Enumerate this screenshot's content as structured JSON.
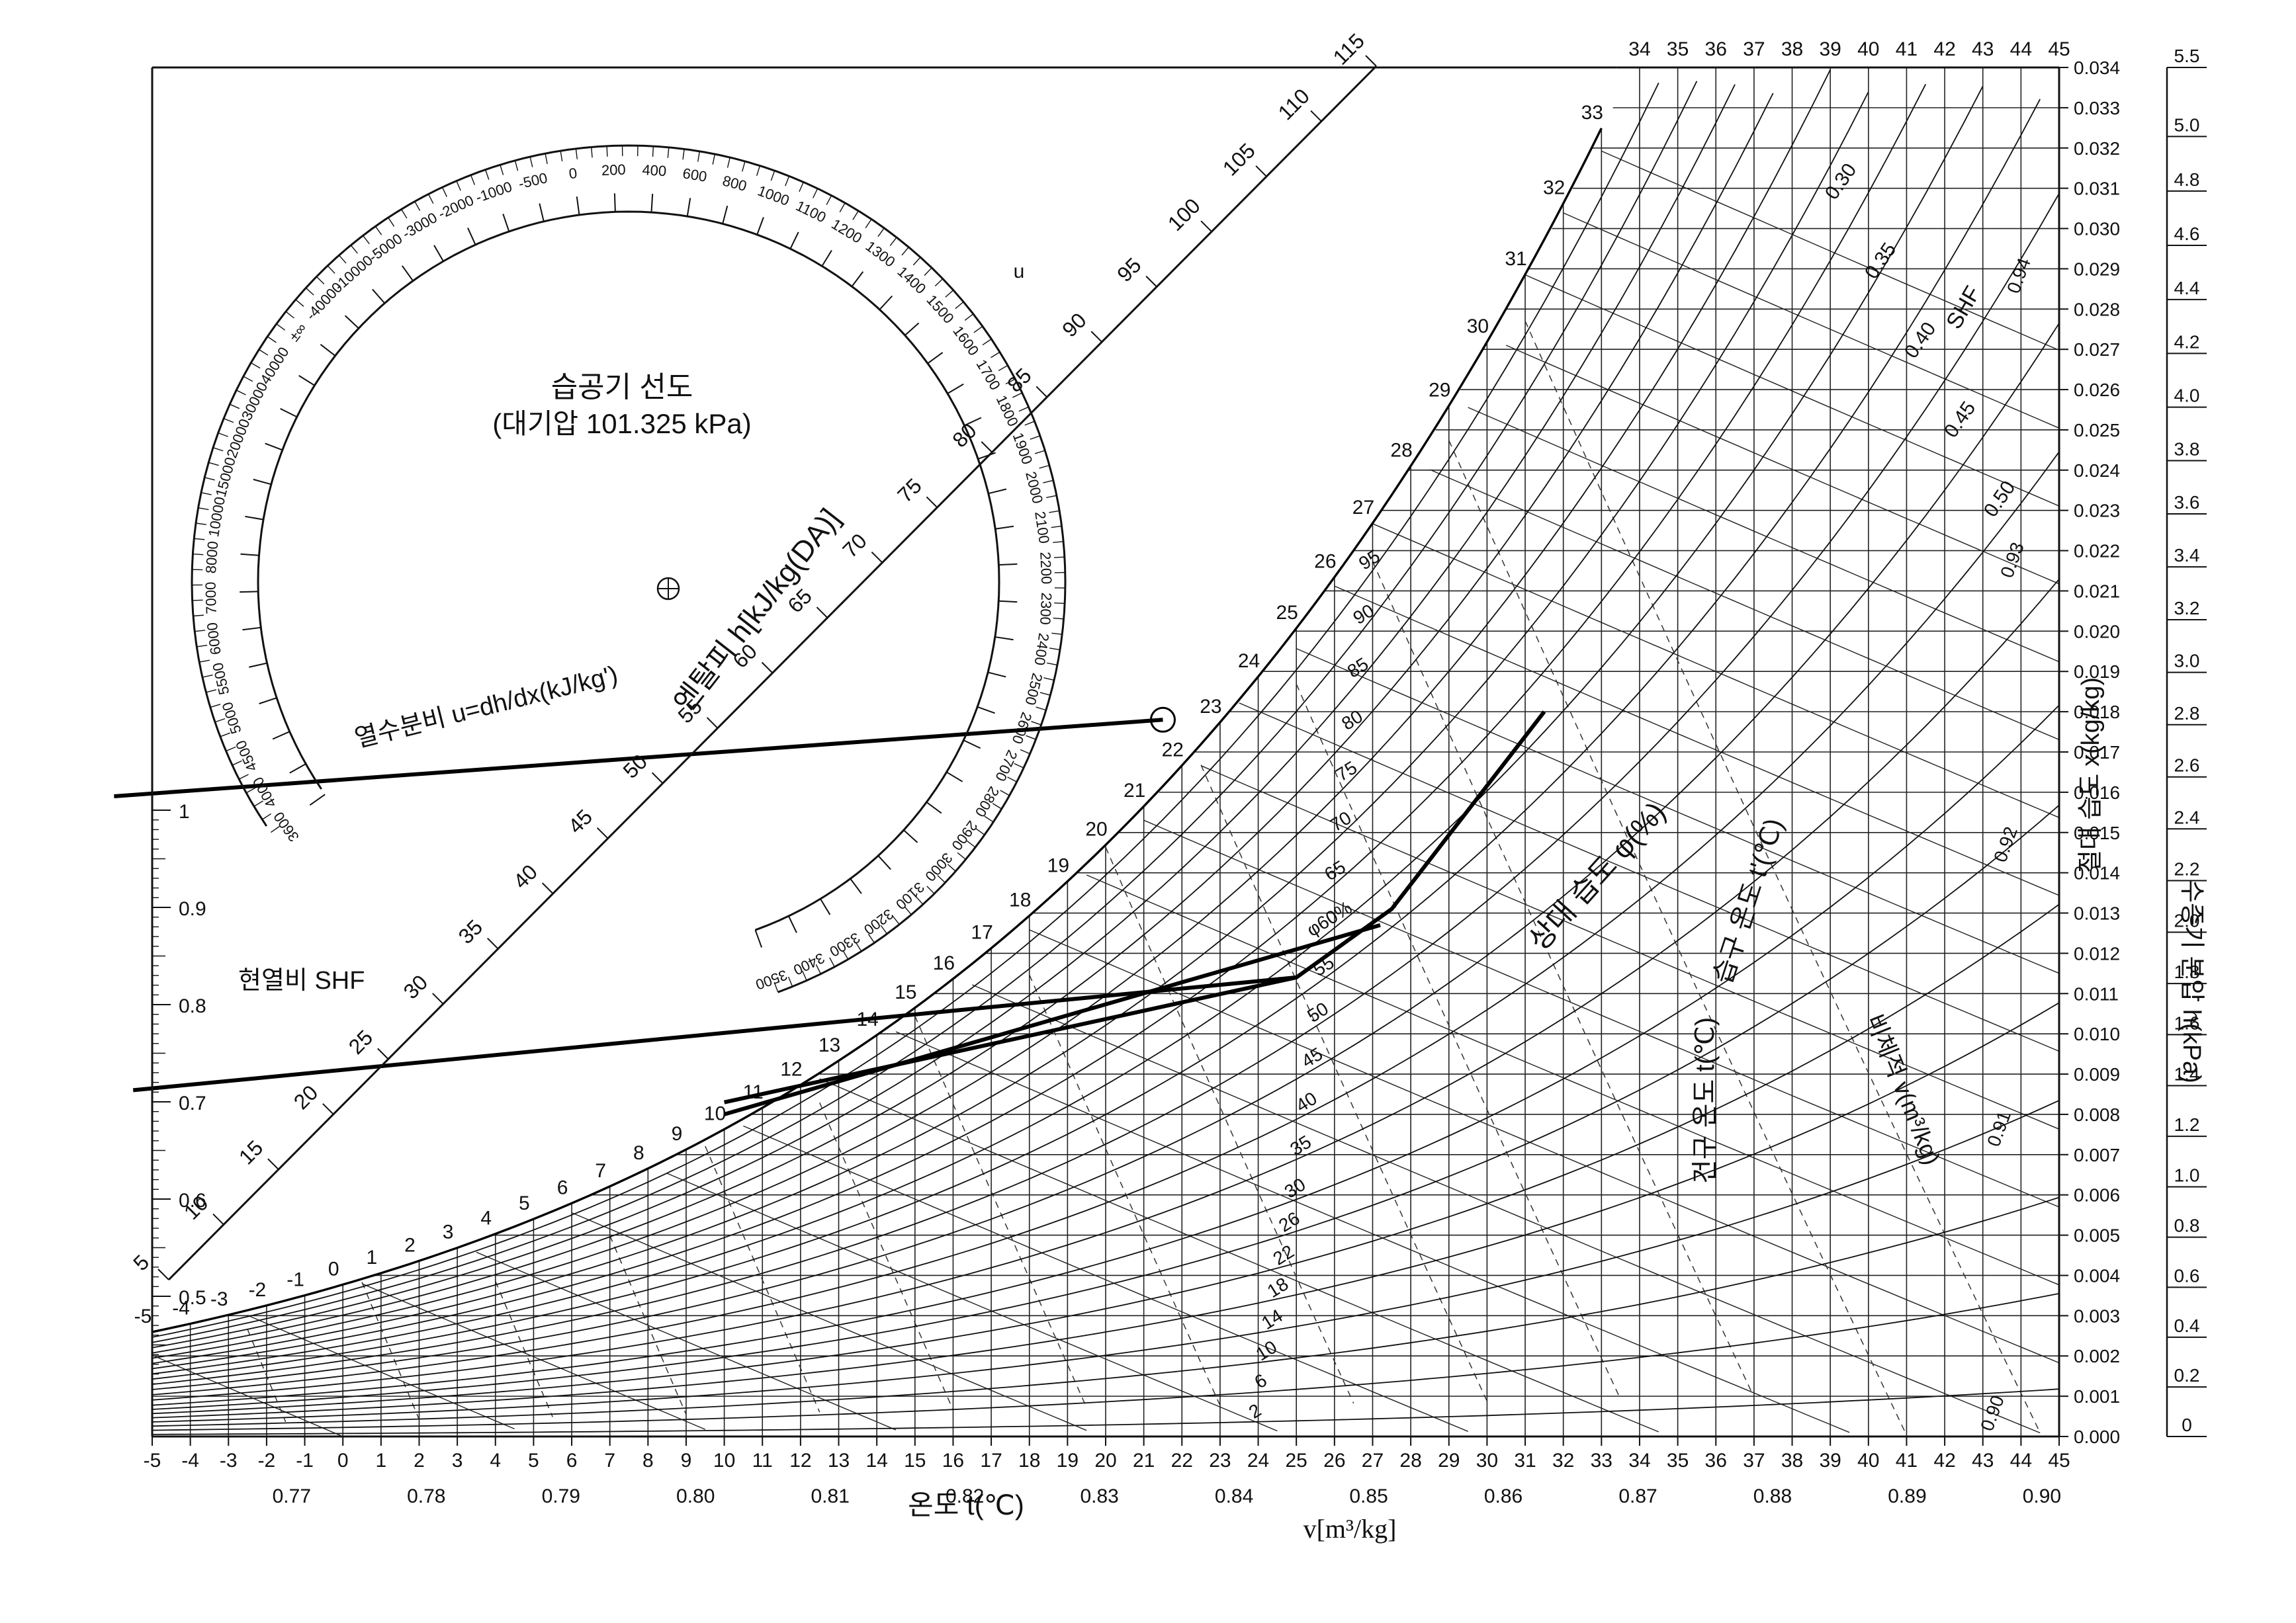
{
  "chart_data": {
    "type": "psychrometric",
    "title": "습공기 선도",
    "subtitle": "(대기압 101.325 kPa)",
    "x_axis": {
      "label": "온도 t(℃)",
      "ticks": [
        -5,
        -4,
        -3,
        -2,
        -1,
        0,
        1,
        2,
        3,
        4,
        5,
        6,
        7,
        8,
        9,
        10,
        11,
        12,
        13,
        14,
        15,
        16,
        17,
        18,
        19,
        20,
        21,
        22,
        23,
        24,
        25,
        26,
        27,
        28,
        29,
        30,
        31,
        32,
        33,
        34,
        35,
        36,
        37,
        38,
        39,
        40,
        41,
        42,
        43,
        44,
        45
      ],
      "range": [
        -5,
        45
      ]
    },
    "top_axis": {
      "ticks": [
        34,
        35,
        36,
        37,
        38,
        39,
        40,
        41,
        42,
        43,
        44,
        45
      ]
    },
    "specific_volume_axis": {
      "label": "v[m³/kg]",
      "ticks": [
        "0.77",
        "0.78",
        "0.79",
        "0.80",
        "0.81",
        "0.82",
        "0.83",
        "0.84",
        "0.85",
        "0.86",
        "0.87",
        "0.88",
        "0.89",
        "0.90"
      ]
    },
    "y_axis": {
      "label": "절대 습도 x(kg/kg)",
      "ticks": [
        "0.034",
        "0.033",
        "0.032",
        "0.031",
        "0.030",
        "0.029",
        "0.028",
        "0.027",
        "0.026",
        "0.025",
        "0.024",
        "0.023",
        "0.022",
        "0.021",
        "0.020",
        "0.019",
        "0.018",
        "0.017",
        "0.016",
        "0.015",
        "0.014",
        "0.013",
        "0.012",
        "0.011",
        "0.010",
        "0.009",
        "0.008",
        "0.007",
        "0.006",
        "0.005",
        "0.004",
        "0.003",
        "0.002",
        "0.001",
        "0.000"
      ],
      "range": [
        0,
        0.034
      ]
    },
    "vapor_pressure_axis": {
      "label": "수증기 분압 h(kPa)",
      "ticks": [
        "5.5",
        "5.0",
        "4.8",
        "4.6",
        "4.4",
        "4.2",
        "4.0",
        "3.8",
        "3.6",
        "3.4",
        "3.2",
        "3.0",
        "2.8",
        "2.6",
        "2.4",
        "2.2",
        "2.0",
        "1.8",
        "1.6",
        "1.4",
        "1.2",
        "1.0",
        "0.8",
        "0.6",
        "0.4",
        "0.2",
        "0"
      ]
    },
    "enthalpy_scale": {
      "label": "엔탈피 h[kJ/kg(DA)]",
      "ticks": [
        5,
        10,
        15,
        20,
        25,
        30,
        35,
        40,
        45,
        50,
        55,
        60,
        65,
        70,
        75,
        80,
        85,
        90,
        95,
        100,
        105,
        110,
        115
      ]
    },
    "saturation_ticks": [
      -5,
      -4,
      -3,
      -2,
      -1,
      0,
      1,
      2,
      3,
      4,
      5,
      6,
      7,
      8,
      9,
      10,
      11,
      12,
      13,
      14,
      15,
      16,
      17,
      18,
      19,
      20,
      21,
      22,
      23,
      24,
      25,
      26,
      27,
      28,
      29,
      30,
      31,
      32,
      33
    ],
    "relative_humidity_lines": {
      "label": "상대 습도 φ(%)",
      "values": [
        2,
        6,
        10,
        14,
        18,
        22,
        26,
        30,
        35,
        40,
        45,
        50,
        55,
        60,
        65,
        70,
        75,
        80,
        85,
        90,
        95
      ],
      "labels": [
        "2",
        "6",
        "10",
        "14",
        "18",
        "22",
        "26",
        "30",
        "35",
        "40",
        "45",
        "50",
        "55",
        "φ60%",
        "65",
        "70",
        "75",
        "80",
        "85",
        "90",
        "95"
      ]
    },
    "wet_bulb_label": "습구 온도 t'(℃)",
    "dry_bulb_label": "건구 온도 t(℃)",
    "specific_volume_lines_label": "비체적 v(m³/kg)",
    "shf_label": "SHF",
    "shf_scale": {
      "label": "현열비 SHF",
      "ticks": [
        "0.5",
        "0.6",
        "0.7",
        "0.8",
        "0.9",
        "1"
      ]
    },
    "shf_curve_ticks": [
      "0.30",
      "0.35",
      "0.40",
      "0.45",
      "0.50"
    ],
    "shf_dashed_ticks": [
      "0.94",
      "0.93",
      "0.92",
      "0.91",
      "0.90"
    ],
    "protractor": {
      "label": "열수분비 u=dh/dx(kJ/kg')",
      "ticks_outer": [
        "3600",
        "4000",
        "4500",
        "5000",
        "5500",
        "6000",
        "7000",
        "8000",
        "10000",
        "15000",
        "20000",
        "30000",
        "40000",
        "±∞",
        "-40000",
        "-10000",
        "-5000",
        "-3000",
        "-2000",
        "-1000",
        "-500",
        "0",
        "200",
        "400",
        "600",
        "800",
        "1000",
        "1100",
        "1200",
        "1300",
        "1400",
        "1500",
        "1600",
        "1700",
        "1800",
        "1900",
        "2000",
        "2100",
        "2200",
        "2300",
        "2400",
        "2500",
        "2600",
        "2700",
        "2800",
        "2900",
        "3000",
        "3100",
        "3200",
        "3300",
        "3400",
        "3500"
      ],
      "unit_letter": "u"
    },
    "process_lines": [
      {
        "name": "",
        "points": [
          [
            -6.0,
            0.0159
          ],
          [
            21.5,
            0.0178
          ]
        ]
      },
      {
        "name": "",
        "points": [
          [
            -5.5,
            0.0086
          ],
          [
            25.0,
            0.0114
          ]
        ]
      },
      {
        "name": "",
        "points": [
          [
            10.0,
            0.008
          ],
          [
            27.2,
            0.0127
          ]
        ]
      },
      {
        "name": "",
        "points": [
          [
            10.0,
            0.0083
          ],
          [
            25.0,
            0.0114
          ],
          [
            27.5,
            0.0131
          ],
          [
            31.5,
            0.018
          ]
        ]
      }
    ],
    "grid": true
  }
}
